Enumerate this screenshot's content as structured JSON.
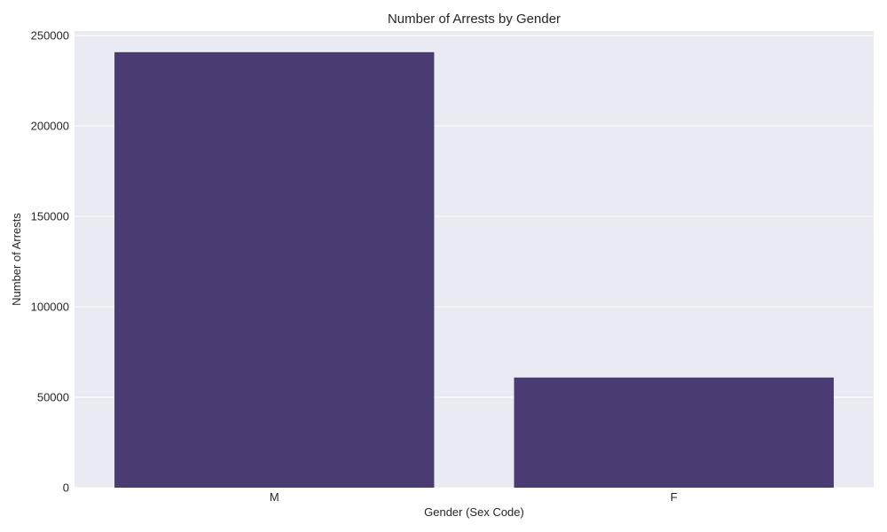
{
  "chart_data": {
    "type": "bar",
    "title": "Number of Arrests by Gender",
    "xlabel": "Gender (Sex Code)",
    "ylabel": "Number of Arrests",
    "categories": [
      "M",
      "F"
    ],
    "values": [
      240800,
      60900
    ],
    "ylim": [
      0,
      252500
    ],
    "yticks": [
      0,
      50000,
      100000,
      150000,
      200000,
      250000
    ],
    "ytick_labels": [
      "0",
      "50000",
      "100000",
      "150000",
      "200000",
      "250000"
    ],
    "grid": true,
    "legend": "none",
    "colors": {
      "bar": "#4a3b73",
      "plot_background": "#eaeaf2",
      "grid": "#ffffff",
      "text": "#262626"
    }
  }
}
